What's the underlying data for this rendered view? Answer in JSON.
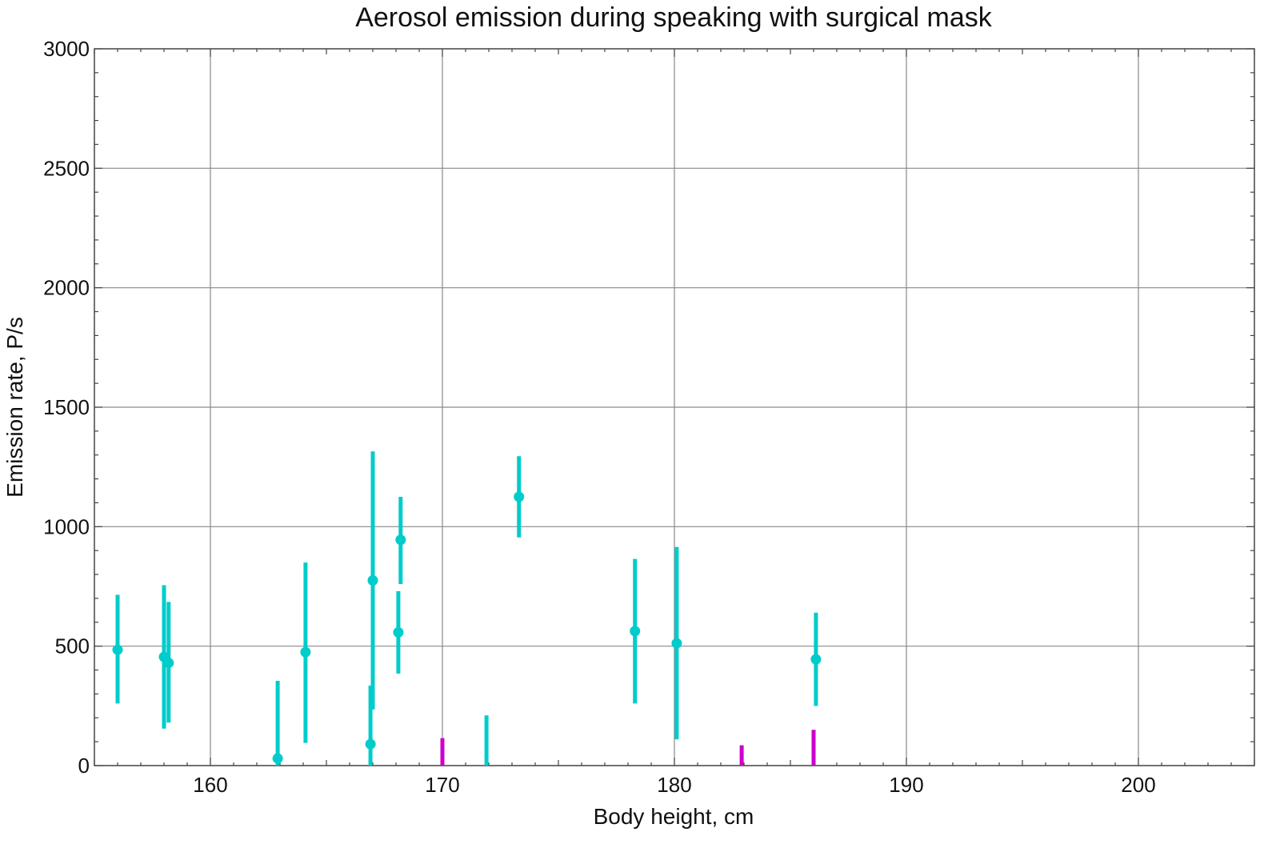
{
  "chart_data": {
    "type": "scatter",
    "title": "Aerosol emission during speaking with surgical mask",
    "xlabel": "Body height,  cm",
    "ylabel": "Emission rate,  P/s",
    "xlim": [
      155,
      205
    ],
    "ylim": [
      0,
      3000
    ],
    "xticks": [
      "160",
      "170",
      "180",
      "190",
      "200"
    ],
    "xtick_values": [
      160,
      170,
      180,
      190,
      200
    ],
    "yticks": [
      "0",
      "500",
      "1000",
      "1500",
      "2000",
      "2500",
      "3000"
    ],
    "ytick_values": [
      0,
      500,
      1000,
      1500,
      2000,
      2500,
      3000
    ],
    "grid": true,
    "colors": {
      "series_a": "#00cccc",
      "series_b": "#cc00cc"
    },
    "series": [
      {
        "color": "#00cccc",
        "points": [
          {
            "x": 156.0,
            "y": 485,
            "low": 260,
            "high": 715
          },
          {
            "x": 158.0,
            "y": 455,
            "low": 155,
            "high": 755
          },
          {
            "x": 158.2,
            "y": 430,
            "low": 180,
            "high": 685
          },
          {
            "x": 162.9,
            "y": 30,
            "low": 0,
            "high": 355
          },
          {
            "x": 164.1,
            "y": 475,
            "low": 95,
            "high": 850
          },
          {
            "x": 167.0,
            "y": 775,
            "low": 235,
            "high": 1315
          },
          {
            "x": 166.9,
            "y": 90,
            "low": 0,
            "high": 335
          },
          {
            "x": 168.2,
            "y": 945,
            "low": 760,
            "high": 1125
          },
          {
            "x": 168.1,
            "y": 558,
            "low": 385,
            "high": 730
          },
          {
            "x": 171.9,
            "y": null,
            "low": 0,
            "high": 210
          },
          {
            "x": 173.3,
            "y": 1125,
            "low": 955,
            "high": 1295
          },
          {
            "x": 178.3,
            "y": 563,
            "low": 260,
            "high": 865
          },
          {
            "x": 180.1,
            "y": 512,
            "low": 110,
            "high": 915
          },
          {
            "x": 186.1,
            "y": 445,
            "low": 250,
            "high": 640
          }
        ]
      },
      {
        "color": "#cc00cc",
        "points": [
          {
            "x": 170.0,
            "y": null,
            "low": 0,
            "high": 115
          },
          {
            "x": 182.9,
            "y": null,
            "low": 0,
            "high": 85
          },
          {
            "x": 186.0,
            "y": null,
            "low": 0,
            "high": 150
          }
        ]
      }
    ]
  }
}
